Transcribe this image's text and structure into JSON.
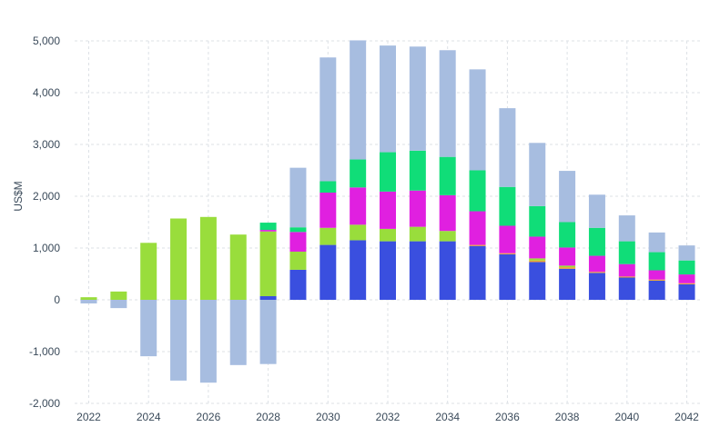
{
  "chart_data": {
    "type": "bar",
    "stacked": true,
    "ylabel": "US$M",
    "ylim": [
      -2000,
      5000
    ],
    "y_ticks": [
      -2000,
      -1000,
      0,
      1000,
      2000,
      3000,
      4000,
      5000
    ],
    "y_tick_labels": [
      "-2,000",
      "-1,000",
      "0",
      "1,000",
      "2,000",
      "3,000",
      "4,000",
      "5,000"
    ],
    "x_tick_labels": [
      "2022",
      "2024",
      "2026",
      "2028",
      "2030",
      "2032",
      "2034",
      "2036",
      "2038",
      "2040",
      "2042"
    ],
    "grid": true,
    "categories": [
      "2022",
      "2023",
      "2024",
      "2025",
      "2026",
      "2027",
      "2028",
      "2029",
      "2030",
      "2031",
      "2032",
      "2033",
      "2034",
      "2035",
      "2036",
      "2037",
      "2038",
      "2039",
      "2040",
      "2041",
      "2042"
    ],
    "series": [
      {
        "color": "#3a4fdf",
        "values": [
          0,
          0,
          0,
          0,
          0,
          0,
          70,
          580,
          1060,
          1150,
          1130,
          1130,
          1130,
          1040,
          880,
          730,
          600,
          520,
          430,
          370,
          300
        ]
      },
      {
        "color": "#f0a030",
        "values": [
          0,
          0,
          0,
          0,
          0,
          0,
          0,
          0,
          0,
          0,
          0,
          0,
          0,
          20,
          20,
          30,
          30,
          20,
          20,
          20,
          20
        ]
      },
      {
        "color": "#99dd3c",
        "values": [
          50,
          160,
          1100,
          1570,
          1600,
          1260,
          1250,
          350,
          330,
          300,
          240,
          280,
          200,
          0,
          0,
          40,
          30,
          0,
          0,
          0,
          0
        ]
      },
      {
        "color": "#e020e0",
        "values": [
          0,
          0,
          0,
          0,
          0,
          0,
          30,
          380,
          680,
          720,
          720,
          700,
          690,
          650,
          530,
          420,
          350,
          310,
          240,
          180,
          170
        ]
      },
      {
        "color": "#10dd78",
        "values": [
          0,
          0,
          0,
          0,
          0,
          0,
          140,
          90,
          220,
          540,
          760,
          770,
          740,
          790,
          750,
          590,
          490,
          540,
          440,
          350,
          270
        ]
      },
      {
        "color": "#a7bde0",
        "values": [
          -70,
          -160,
          -1090,
          -1560,
          -1600,
          -1260,
          -1240,
          1150,
          2390,
          2300,
          2060,
          2010,
          2060,
          1950,
          1520,
          1220,
          990,
          640,
          500,
          380,
          290
        ]
      }
    ]
  }
}
